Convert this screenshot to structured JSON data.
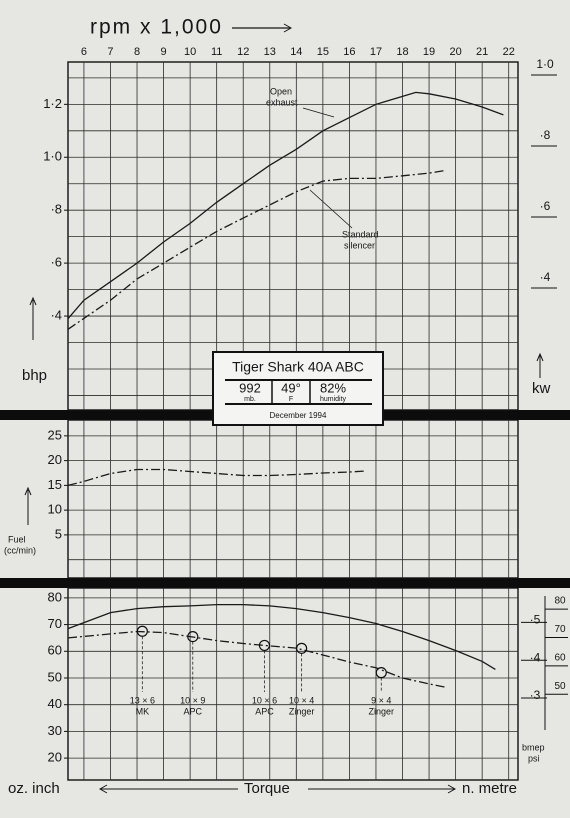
{
  "chart_data": [
    {
      "type": "line",
      "title": "rpm x 1,000",
      "ylabel": "bhp",
      "y2label": "kw",
      "xlim": [
        5.4,
        22.35
      ],
      "xticks": [
        6,
        7,
        8,
        9,
        10,
        11,
        12,
        13,
        14,
        15,
        16,
        17,
        18,
        19,
        20,
        21,
        22
      ],
      "ylim": [
        0.045,
        1.36
      ],
      "yticks": [
        {
          "value": 0.4,
          "label": "·4"
        },
        {
          "value": 0.6,
          "label": "·6"
        },
        {
          "value": 0.8,
          "label": "·8"
        },
        {
          "value": 1.0,
          "label": "1·0"
        },
        {
          "value": 1.2,
          "label": "1·2"
        }
      ],
      "ygrid": [
        0.1,
        0.2,
        0.3,
        0.4,
        0.5,
        0.6,
        0.7,
        0.8,
        0.9,
        1.0,
        1.1,
        1.2,
        1.3
      ],
      "y2lim": [
        0.034,
        1.014
      ],
      "y2ticks": [
        {
          "value": 0.4,
          "label": "·4"
        },
        {
          "value": 0.6,
          "label": "·6"
        },
        {
          "value": 0.8,
          "label": "·8"
        },
        {
          "value": 1.0,
          "label": "1·0"
        }
      ],
      "grid": true,
      "series": [
        {
          "style": "solid",
          "color": "#1a1a1a",
          "x": [
            5.4,
            6,
            7,
            8,
            9,
            10,
            11,
            12,
            13,
            14,
            15,
            16,
            17,
            18,
            18.5,
            19,
            20,
            21,
            21.8
          ],
          "values": [
            0.39,
            0.46,
            0.53,
            0.6,
            0.68,
            0.75,
            0.83,
            0.9,
            0.97,
            1.03,
            1.1,
            1.15,
            1.2,
            1.23,
            1.245,
            1.24,
            1.22,
            1.19,
            1.16
          ]
        },
        {
          "style": "dashdot",
          "color": "#1a1a1a",
          "x": [
            5.4,
            7,
            8,
            9,
            10,
            11,
            12,
            13,
            14,
            15,
            16,
            17,
            18,
            19,
            19.6
          ],
          "values": [
            0.35,
            0.46,
            0.54,
            0.6,
            0.66,
            0.72,
            0.77,
            0.82,
            0.87,
            0.91,
            0.92,
            0.92,
            0.93,
            0.94,
            0.95
          ]
        }
      ],
      "annotations": [
        [
          "Open",
          "exhaust"
        ],
        [
          "Standard",
          "silencer"
        ]
      ]
    },
    {
      "type": "line",
      "ylabel": [
        "Fuel",
        "(cc/min)"
      ],
      "xlim": [
        5.4,
        22.35
      ],
      "ylim": [
        -3.7,
        28.2
      ],
      "yticks": [
        5,
        10,
        15,
        20,
        25
      ],
      "ygrid": [
        0,
        5,
        10,
        15,
        20,
        25
      ],
      "grid": true,
      "series": [
        {
          "style": "dashdot",
          "color": "#1a1a1a",
          "x": [
            5.4,
            6,
            7,
            8,
            9,
            10,
            11,
            12,
            13,
            14,
            15,
            16,
            16.6
          ],
          "values": [
            15.0,
            15.8,
            17.4,
            18.2,
            18.2,
            17.8,
            17.4,
            17.0,
            17.0,
            17.2,
            17.5,
            17.7,
            17.9
          ]
        }
      ]
    },
    {
      "type": "line",
      "ylabel": "oz. inch",
      "xlabel": "Torque",
      "y2label": "n. metre",
      "y3label": [
        "bmep",
        "psi"
      ],
      "xlim": [
        5.4,
        22.35
      ],
      "ylim": [
        11.8,
        83.7
      ],
      "yticks": [
        20,
        30,
        40,
        50,
        60,
        70,
        80
      ],
      "ygrid": [
        20,
        30,
        40,
        50,
        60,
        70,
        80
      ],
      "grid": true,
      "y2lim": [
        0.083,
        0.591
      ],
      "y2ticks": [
        {
          "value": 0.3,
          "label": "·3"
        },
        {
          "value": 0.4,
          "label": "·4"
        },
        {
          "value": 0.5,
          "label": "·5"
        }
      ],
      "y3lim": [
        17.0,
        84.6
      ],
      "y3ticks": [
        50,
        60,
        70,
        80
      ],
      "series": [
        {
          "style": "solid",
          "color": "#1a1a1a",
          "x": [
            5.4,
            7,
            8,
            9,
            10,
            11,
            12,
            13,
            14,
            15,
            16,
            17,
            18,
            19,
            20,
            21,
            21.5
          ],
          "values": [
            68.5,
            74.5,
            76,
            76.7,
            77,
            77.5,
            77.5,
            77,
            76,
            74.5,
            72.6,
            70.4,
            67.4,
            64,
            60.3,
            56.2,
            53.2
          ]
        },
        {
          "style": "dashdot",
          "color": "#1a1a1a",
          "x": [
            5.4,
            7,
            8,
            9,
            10,
            11,
            12,
            13,
            14,
            15,
            16,
            17,
            18,
            19,
            19.6
          ],
          "values": [
            65,
            66.5,
            67.4,
            67,
            65.5,
            64,
            62.9,
            62,
            61.2,
            58.6,
            56,
            53.8,
            50,
            47.8,
            46.6
          ]
        }
      ],
      "markers": {
        "x": [
          8.2,
          10.1,
          12.8,
          14.2,
          17.2
        ],
        "values": [
          67.5,
          65.5,
          62.2,
          61.1,
          52
        ],
        "labels": [
          [
            "13 × 6",
            "MK"
          ],
          [
            "10 × 9",
            "APC"
          ],
          [
            "10 × 6",
            "APC"
          ],
          [
            "10 × 4",
            "Zinger"
          ],
          [
            "9 × 4",
            "Zinger"
          ]
        ]
      }
    }
  ],
  "info_box": {
    "title": "Tiger Shark 40A ABC",
    "cells": [
      [
        "992",
        "mb."
      ],
      [
        "49°",
        "F"
      ],
      [
        "82%",
        "humidity"
      ]
    ],
    "date": "December 1994"
  }
}
